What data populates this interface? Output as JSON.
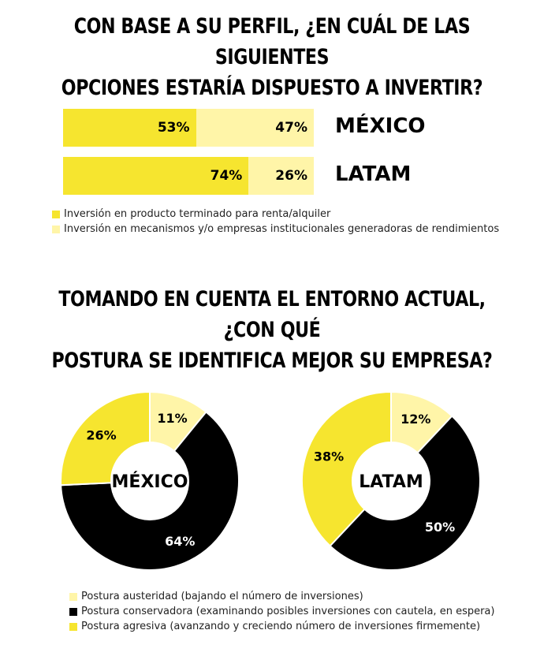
{
  "colors": {
    "dark_yellow": "#f6e52f",
    "light_yellow": "#fff5a8",
    "black": "#000000"
  },
  "chart_data": [
    {
      "type": "bar",
      "orientation": "horizontal",
      "stacked": true,
      "title": "CON BASE A SU PERFIL, ¿EN CUÁL DE LAS SIGUIENTES OPCIONES ESTARÍA DISPUESTO A INVERTIR?",
      "categories": [
        "MÉXICO",
        "LATAM"
      ],
      "series": [
        {
          "name": "Inversión en producto terminado para renta/alquiler",
          "values": [
            53,
            74
          ],
          "labels": [
            "53%",
            "74%"
          ],
          "color": "#f6e52f"
        },
        {
          "name": "Inversión en mecanismos y/o empresas institucionales generadoras de rendimientos",
          "values": [
            47,
            26
          ],
          "labels": [
            "47%",
            "26%"
          ],
          "color": "#fff5a8"
        }
      ],
      "legend_position": "bottom"
    },
    {
      "type": "pie",
      "title": "TOMANDO EN CUENTA EL ENTORNO ACTUAL, ¿CON QUÉ POSTURA SE IDENTIFICA MEJOR SU EMPRESA?",
      "donuts": [
        {
          "center_label": "MÉXICO",
          "slices": [
            {
              "name": "Postura austeridad (bajando el número de inversiones)",
              "value": 11,
              "label": "11%",
              "color": "#fff5a8"
            },
            {
              "name": "Postura conservadora (examinando posibles inversiones con cautela, en espera)",
              "value": 64,
              "label": "64%",
              "color": "#000000"
            },
            {
              "name": "Postura agresiva (avanzando y creciendo número de inversiones firmemente)",
              "value": 26,
              "label": "26%",
              "color": "#f6e52f"
            }
          ]
        },
        {
          "center_label": "LATAM",
          "slices": [
            {
              "name": "Postura austeridad (bajando el número de inversiones)",
              "value": 12,
              "label": "12%",
              "color": "#fff5a8"
            },
            {
              "name": "Postura conservadora (examinando posibles inversiones con cautela, en espera)",
              "value": 50,
              "label": "50%",
              "color": "#000000"
            },
            {
              "name": "Postura agresiva (avanzando y creciendo número de inversiones firmemente)",
              "value": 38,
              "label": "38%",
              "color": "#f6e52f"
            }
          ]
        }
      ],
      "legend_position": "bottom"
    }
  ]
}
